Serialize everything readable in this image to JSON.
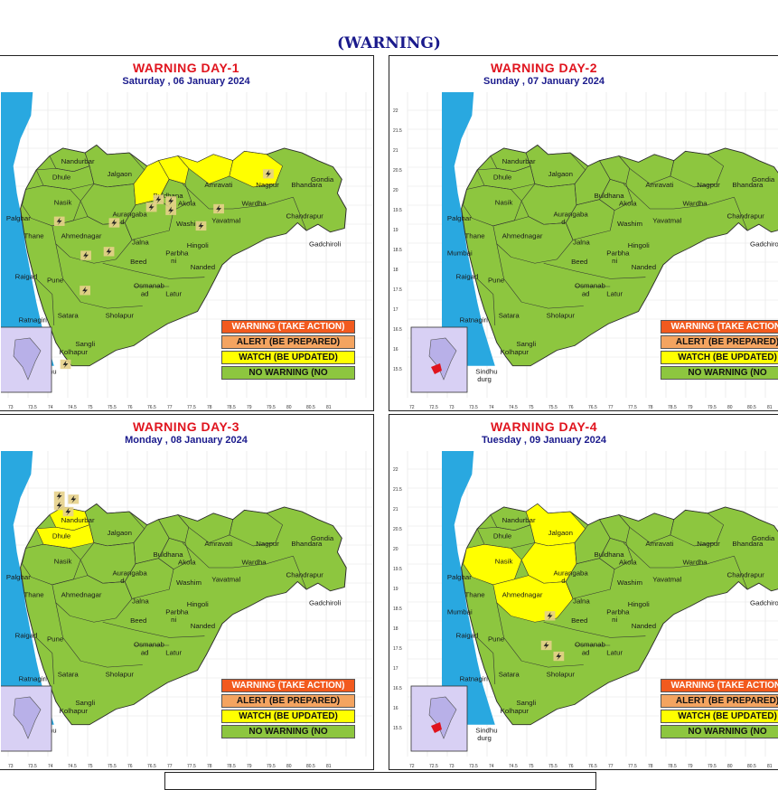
{
  "main_title": "(WARNING)",
  "panels": [
    {
      "title": "WARNING  DAY-1",
      "date": "Saturday ,  06 January 2024"
    },
    {
      "title": "WARNING  DAY-2",
      "date": "Sunday ,  07 January 2024"
    },
    {
      "title": "WARNING  DAY-3",
      "date": "Monday ,  08 January 2024"
    },
    {
      "title": "WARNING  DAY-4",
      "date": "Tuesday ,  09 January 2024"
    }
  ],
  "legend": {
    "red": "WARNING (TAKE ACTION)",
    "orange": "ALERT (BE PREPARED)",
    "yellow": "WATCH (BE UPDATED)",
    "green": "NO WARNING (NO"
  },
  "cities": [
    "Nandurbar",
    "Dhule",
    "Jalgaon",
    "Nasik",
    "Palghar",
    "Thane",
    "Mumbai",
    "Aurangaba",
    "d",
    "Ahmednagar",
    "Jalna",
    "Beed",
    "Parbha",
    "ni",
    "Hingoli",
    "Nanded",
    "Latur",
    "Osmanab",
    "ad",
    "Pune",
    "Raigad",
    "Satara",
    "Sholapur",
    "Ratnagiri",
    "Sangli",
    "Kolhapur",
    "Sindhu",
    "durg",
    "Buldhana",
    "Akola",
    "Washim",
    "Amravati",
    "Yavatmal",
    "Wardha",
    "Nagpur",
    "Bhandara",
    "Gondia",
    "Chandrapur",
    "Gadchiroli"
  ],
  "x_ticks": [
    "72",
    "72.5",
    "73",
    "73.5",
    "74",
    "74.5",
    "75",
    "75.5",
    "76",
    "76.5",
    "77",
    "77.5",
    "78",
    "78.5",
    "79",
    "79.5",
    "80",
    "80.5",
    "81"
  ],
  "y_ticks": [
    "22",
    "21.5",
    "21",
    "20.5",
    "20",
    "19.5",
    "19",
    "18.5",
    "18",
    "17.5",
    "17",
    "16.5",
    "16",
    "15.5"
  ],
  "colors": {
    "warning": "#f25a1e",
    "alert": "#f4a460",
    "watch": "#ffff00",
    "none": "#8dc63f",
    "sea": "#29a8e0",
    "inset": "#d8d0f4"
  },
  "icons": [
    "thunderstorm-icon"
  ],
  "watch_districts": {
    "day1": [
      "Buldhana",
      "Akola",
      "Amravati",
      "Nagpur"
    ],
    "day2": [],
    "day3": [
      "Nandurbar",
      "Dhule"
    ],
    "day4": [
      "Nasik",
      "Jalgaon",
      "Aurangabad",
      "Ahmednagar"
    ]
  }
}
